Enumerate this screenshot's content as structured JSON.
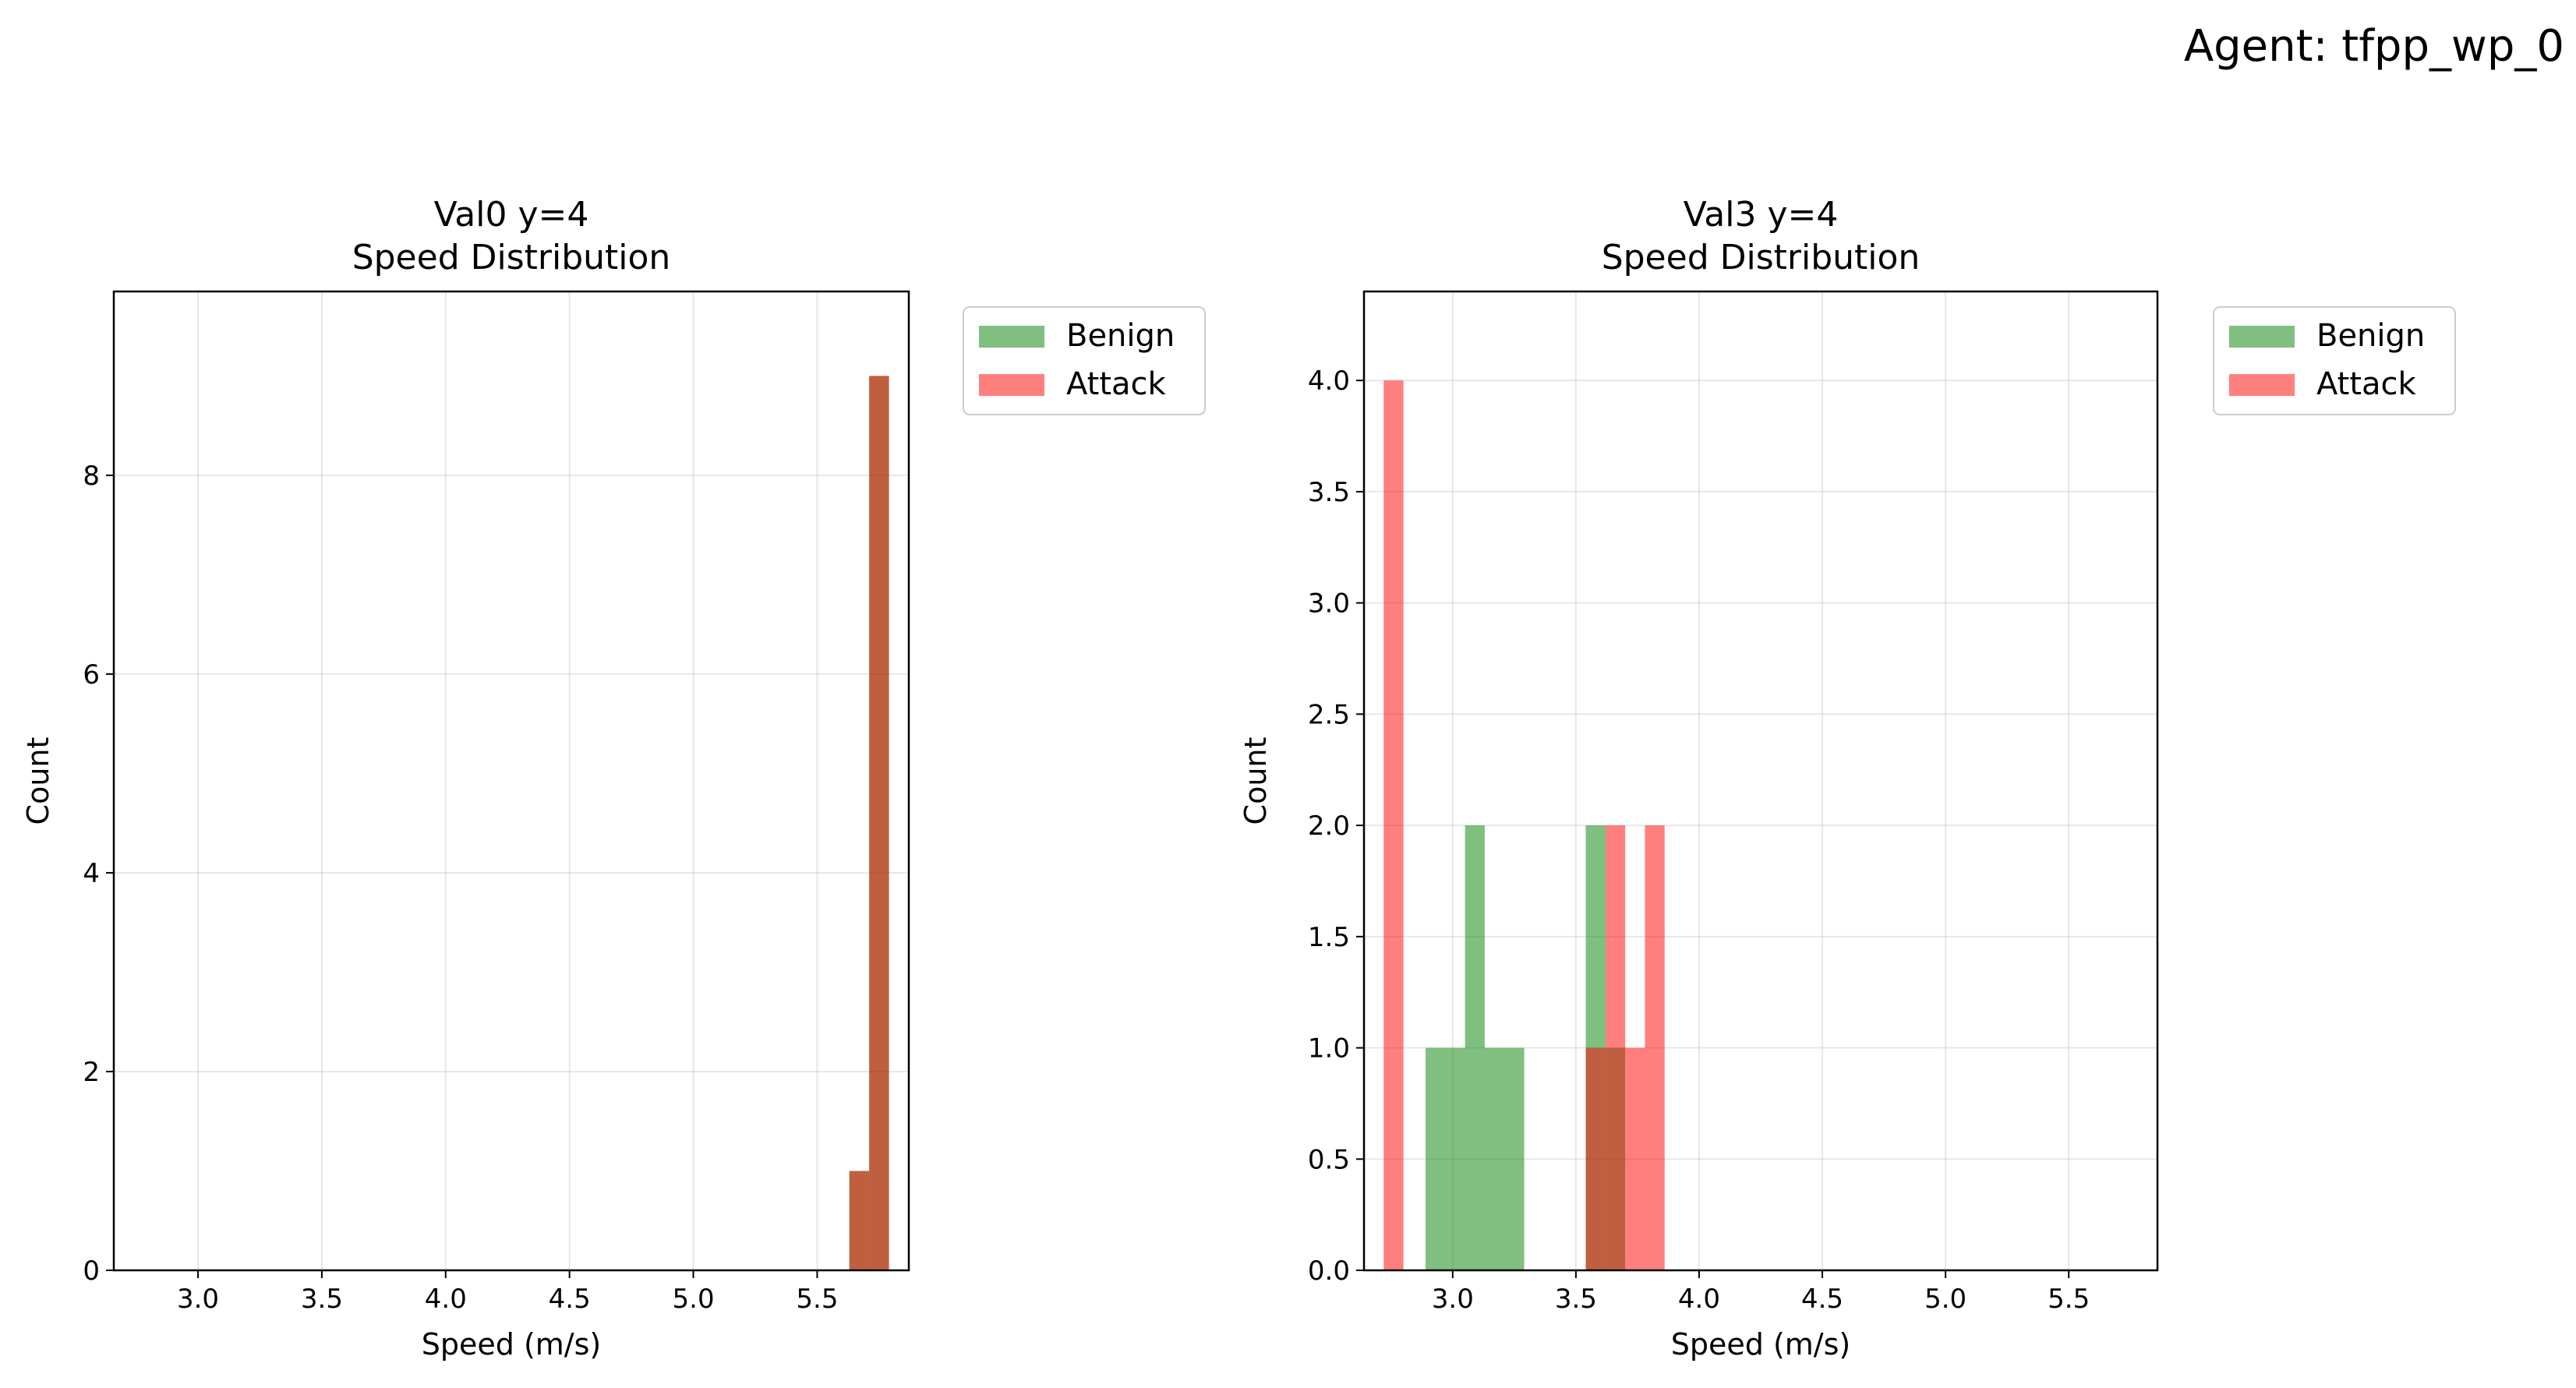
{
  "figure": {
    "suptitle": "Agent: tfpp_wp_0"
  },
  "colors": {
    "benign": "#008000",
    "attack": "#ff0000",
    "bar_alpha": 0.5
  },
  "chart_data": [
    {
      "type": "bar",
      "title_line1": "Val0 y=4",
      "title_line2": "Speed Distribution",
      "xlabel": "Speed (m/s)",
      "ylabel": "Count",
      "xlim": [
        2.66,
        5.87
      ],
      "ylim": [
        0,
        9.85
      ],
      "xticks": [
        3.0,
        3.5,
        4.0,
        4.5,
        5.0,
        5.5
      ],
      "xtick_labels": [
        "3.0",
        "3.5",
        "4.0",
        "4.5",
        "5.0",
        "5.5"
      ],
      "yticks": [
        0,
        2,
        4,
        6,
        8
      ],
      "ytick_labels": [
        "0",
        "2",
        "4",
        "6",
        "8"
      ],
      "grid": true,
      "legend": {
        "placement": "outside upper right",
        "entries": [
          "Benign",
          "Attack"
        ]
      },
      "series": [
        {
          "name": "Benign",
          "bars": [
            {
              "x0": 5.63,
              "x1": 5.71,
              "count": 1
            },
            {
              "x0": 5.71,
              "x1": 5.79,
              "count": 9
            }
          ]
        },
        {
          "name": "Attack",
          "bars": [
            {
              "x0": 5.63,
              "x1": 5.71,
              "count": 1
            },
            {
              "x0": 5.71,
              "x1": 5.79,
              "count": 9
            }
          ]
        }
      ]
    },
    {
      "type": "bar",
      "title_line1": "Val3 y=4",
      "title_line2": "Speed Distribution",
      "xlabel": "Speed (m/s)",
      "ylabel": "Count",
      "xlim": [
        2.64,
        5.86
      ],
      "ylim": [
        0,
        4.4
      ],
      "xticks": [
        3.0,
        3.5,
        4.0,
        4.5,
        5.0,
        5.5
      ],
      "xtick_labels": [
        "3.0",
        "3.5",
        "4.0",
        "4.5",
        "5.0",
        "5.5"
      ],
      "yticks": [
        0.0,
        0.5,
        1.0,
        1.5,
        2.0,
        2.5,
        3.0,
        3.5,
        4.0
      ],
      "ytick_labels": [
        "0.0",
        "0.5",
        "1.0",
        "1.5",
        "2.0",
        "2.5",
        "3.0",
        "3.5",
        "4.0"
      ],
      "grid": true,
      "legend": {
        "placement": "outside upper right",
        "entries": [
          "Benign",
          "Attack"
        ]
      },
      "series": [
        {
          "name": "Benign",
          "bars": [
            {
              "x0": 2.89,
              "x1": 3.05,
              "count": 1
            },
            {
              "x0": 3.05,
              "x1": 3.13,
              "count": 2
            },
            {
              "x0": 3.13,
              "x1": 3.29,
              "count": 1
            },
            {
              "x0": 3.54,
              "x1": 3.62,
              "count": 2
            },
            {
              "x0": 3.62,
              "x1": 3.7,
              "count": 1
            }
          ]
        },
        {
          "name": "Attack",
          "bars": [
            {
              "x0": 2.72,
              "x1": 2.8,
              "count": 4
            },
            {
              "x0": 3.54,
              "x1": 3.62,
              "count": 1
            },
            {
              "x0": 3.62,
              "x1": 3.7,
              "count": 2
            },
            {
              "x0": 3.7,
              "x1": 3.78,
              "count": 1
            },
            {
              "x0": 3.78,
              "x1": 3.86,
              "count": 2
            }
          ]
        }
      ]
    }
  ]
}
